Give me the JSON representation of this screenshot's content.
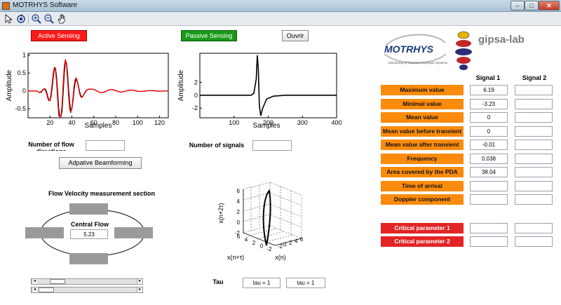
{
  "window": {
    "title": "MOTRHYS Software",
    "min": "–",
    "max": "□",
    "close": "✕"
  },
  "toolbar": [
    "arrow-icon",
    "rotate-icon",
    "zoom-in-icon",
    "zoom-out-icon",
    "pan-icon"
  ],
  "sensing": {
    "active_label": "Active Sensing",
    "passive_label": "Passive Sensing",
    "open_label": "Ouvrir"
  },
  "active_plot": {
    "xlabel": "Samples",
    "ylabel": "Amplitude",
    "xticks": [
      "20",
      "40",
      "60",
      "80",
      "100",
      "120"
    ],
    "yticks": [
      "1",
      "0.5",
      "0",
      "-0.5"
    ],
    "xlim": [
      0,
      128
    ],
    "ylim": [
      -0.75,
      1.05
    ]
  },
  "passive_plot": {
    "xlabel": "Samples",
    "ylabel": "Amplitude",
    "xticks": [
      "100",
      "200",
      "300",
      "400"
    ],
    "yticks": [
      "2",
      "0",
      "-2"
    ],
    "xlim": [
      0,
      400
    ],
    "ylim": [
      -3.5,
      6.5
    ]
  },
  "flow": {
    "directions_label": "Number of flow directions",
    "directions_value": "",
    "signals_label": "Number of signals",
    "signals_value": "",
    "beamforming_label": "Adpative Beamforming",
    "section_title": "Flow Velocity measurement section",
    "central_label": "Central Flow rate",
    "central_value": "5.23"
  },
  "phase_plot": {
    "zlabel": "x(n+2τ)",
    "xlabel": "x(n)",
    "ylabel": "x(n+τ)",
    "zticks": [
      "6",
      "4",
      "2",
      "0",
      "-2"
    ],
    "xticks": [
      "-2",
      "0",
      "2",
      "4",
      "6"
    ],
    "yticks": [
      "6",
      "4",
      "2",
      "0",
      "-2"
    ]
  },
  "tau": {
    "label": "Tau",
    "tau1": "tau = 1",
    "tau2": "tau = 1"
  },
  "logos": {
    "motrhys": "MOTRHYS",
    "motrhys_sub": "Monitoring of Transient Hydraulic Systems",
    "gipsa": "gipsa-lab"
  },
  "params": {
    "signal1_header": "Signal 1",
    "signal2_header": "Signal 2",
    "rows": [
      {
        "label": "Maximum value",
        "s1": "6.19",
        "s2": ""
      },
      {
        "label": "Minimal value",
        "s1": "-3.23",
        "s2": ""
      },
      {
        "label": "Mean value",
        "s1": "0",
        "s2": ""
      },
      {
        "label": "Mean value before transient",
        "s1": "0",
        "s2": ""
      },
      {
        "label": "Mean value after transient",
        "s1": "-0.01",
        "s2": ""
      },
      {
        "label": "Frequency",
        "s1": "0.038",
        "s2": ""
      },
      {
        "label": "Area covered by the PDA",
        "s1": "38.04",
        "s2": ""
      },
      {
        "label": "Time of arrival",
        "s1": "",
        "s2": ""
      },
      {
        "label": "Doppler component",
        "s1": "",
        "s2": ""
      }
    ],
    "critical": [
      {
        "label": "Critical parameter 1",
        "s1": "",
        "s2": ""
      },
      {
        "label": "Critical parameter 2",
        "s1": "",
        "s2": ""
      }
    ]
  },
  "sliders": [
    {
      "value": 0.15
    },
    {
      "value": 0.02
    }
  ],
  "colors": {
    "active": "#ff1a1a",
    "passive": "#1a9a1a",
    "param": "#fb8b0c",
    "critical": "#e32424"
  }
}
